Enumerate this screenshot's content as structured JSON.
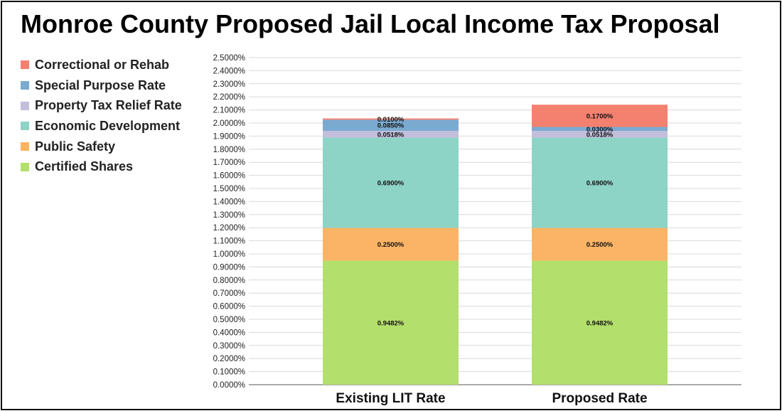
{
  "title": "Monroe County Proposed Jail Local Income Tax Proposal",
  "legend": [
    {
      "label": "Correctional or Rehab",
      "color": "#f4806f"
    },
    {
      "label": "Special Purpose Rate",
      "color": "#7baad0"
    },
    {
      "label": "Property Tax Relief Rate",
      "color": "#c3bedc"
    },
    {
      "label": "Economic Development",
      "color": "#8dd3c6"
    },
    {
      "label": "Public Safety",
      "color": "#fbb465"
    },
    {
      "label": "Certified Shares",
      "color": "#b3df6c"
    }
  ],
  "chart_data": {
    "type": "bar",
    "stacked": true,
    "categories": [
      "Existing LIT Rate",
      "Proposed Rate"
    ],
    "series": [
      {
        "name": "Certified Shares",
        "color": "#b3df6c",
        "values": [
          0.9482,
          0.9482
        ],
        "labels": [
          "0.9482%",
          "0.9482%"
        ]
      },
      {
        "name": "Public Safety",
        "color": "#fbb465",
        "values": [
          0.25,
          0.25
        ],
        "labels": [
          "0.2500%",
          "0.2500%"
        ]
      },
      {
        "name": "Economic Development",
        "color": "#8dd3c6",
        "values": [
          0.69,
          0.69
        ],
        "labels": [
          "0.6900%",
          "0.6900%"
        ]
      },
      {
        "name": "Property Tax Relief Rate",
        "color": "#c3bedc",
        "values": [
          0.0518,
          0.0518
        ],
        "labels": [
          "0.0518%",
          "0.0518%"
        ]
      },
      {
        "name": "Special Purpose Rate",
        "color": "#7baad0",
        "values": [
          0.085,
          0.03
        ],
        "labels": [
          "0.0850%",
          "0.0300%"
        ]
      },
      {
        "name": "Correctional or Rehab",
        "color": "#f4806f",
        "values": [
          0.01,
          0.17
        ],
        "labels": [
          "0.0100%",
          "0.1700%"
        ]
      }
    ],
    "yticks": [
      "0.0000%",
      "0.1000%",
      "0.2000%",
      "0.3000%",
      "0.4000%",
      "0.5000%",
      "0.6000%",
      "0.7000%",
      "0.8000%",
      "0.9000%",
      "1.0000%",
      "1.1000%",
      "1.2000%",
      "1.3000%",
      "1.4000%",
      "1.5000%",
      "1.6000%",
      "1.7000%",
      "1.8000%",
      "1.9000%",
      "2.0000%",
      "2.1000%",
      "2.2000%",
      "2.3000%",
      "2.4000%",
      "2.5000%"
    ],
    "ylim": [
      0,
      2.5
    ],
    "grid": true,
    "legend_position": "left"
  }
}
